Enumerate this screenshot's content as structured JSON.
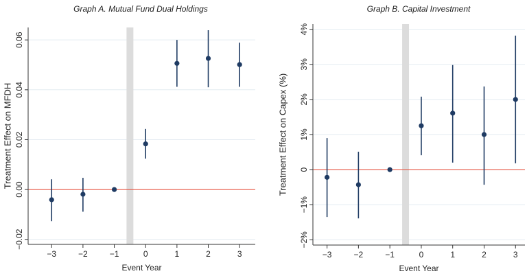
{
  "chart_data": [
    {
      "type": "errorbar",
      "title": "Graph A. Mutual Fund Dual Holdings",
      "x_label": "Event Year",
      "y_label": "Treatment Effect on MFDH",
      "x": [
        -3,
        -2,
        -1,
        0,
        1,
        2,
        3
      ],
      "series": [
        {
          "color": "#1f3b63",
          "values": [
            -0.0041,
            -0.0019,
            0,
            0.0183,
            0.0506,
            0.0526,
            0.0501
          ],
          "ci_low": [
            -0.0127,
            -0.0089,
            0,
            0.0124,
            0.0412,
            0.041,
            0.0412
          ],
          "ci_high": [
            0.0041,
            0.0047,
            0,
            0.0243,
            0.06,
            0.0639,
            0.0589
          ]
        }
      ],
      "xlim": [
        -3.75,
        3.5
      ],
      "ylim": [
        -0.022,
        0.065
      ],
      "xticks": [
        {
          "value": -3,
          "label": "−3"
        },
        {
          "value": -2,
          "label": "−2"
        },
        {
          "value": -1,
          "label": "−1"
        },
        0,
        1,
        2,
        3
      ],
      "yticks": [
        {
          "value": -0.02,
          "label": "−0.02"
        },
        {
          "value": 0,
          "label": "0.00"
        },
        0.02,
        0.04,
        0.06
      ],
      "grid": true,
      "hline": 0,
      "shade_x": -0.5
    },
    {
      "type": "errorbar",
      "title": "Graph B. Capital Investment",
      "x_label": "Event Year",
      "y_label": "Treatment Effect on Capex (%)",
      "x": [
        -3,
        -2,
        -1,
        0,
        1,
        2,
        3
      ],
      "series": [
        {
          "color": "#1f3b63",
          "values": [
            -0.22,
            -0.43,
            0,
            1.25,
            1.61,
            1.0,
            2.0
          ],
          "ci_low": [
            -1.35,
            -1.39,
            0,
            0.41,
            0.2,
            -0.43,
            0.18
          ],
          "ci_high": [
            0.9,
            0.51,
            0,
            2.08,
            2.98,
            2.37,
            3.82
          ]
        }
      ],
      "xlim": [
        -3.45,
        3.3
      ],
      "ylim": [
        -2.15,
        4.15
      ],
      "xticks": [
        {
          "value": -3,
          "label": "−3"
        },
        {
          "value": -2,
          "label": "−2"
        },
        {
          "value": -1,
          "label": "−1"
        },
        0,
        1,
        2,
        3
      ],
      "yticks": [
        {
          "value": -2,
          "label": "−2%"
        },
        {
          "value": -1,
          "label": "−1%"
        },
        {
          "value": 0,
          "label": "0"
        },
        {
          "value": 1,
          "label": "1%"
        },
        {
          "value": 2,
          "label": "2%"
        },
        {
          "value": 3,
          "label": "3%"
        },
        {
          "value": 4,
          "label": "4%"
        }
      ],
      "grid": true,
      "hline": 0,
      "shade_x": -0.5
    }
  ]
}
